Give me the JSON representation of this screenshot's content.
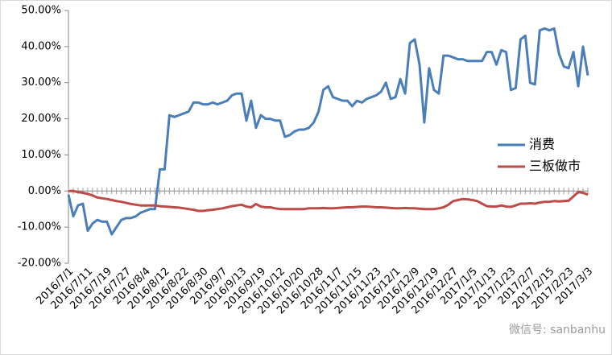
{
  "chart_data": {
    "type": "line",
    "categories": [
      "2016/7/1",
      null,
      null,
      null,
      "2016/7/11",
      null,
      null,
      null,
      "2016/7/19",
      null,
      null,
      null,
      "2016/7/27",
      null,
      null,
      null,
      "2016/8/4",
      null,
      null,
      null,
      "2016/8/12",
      null,
      null,
      null,
      "2016/8/22",
      null,
      null,
      null,
      "2016/8/30",
      null,
      null,
      null,
      "2016/9/7",
      null,
      null,
      null,
      "2016/9/13",
      null,
      null,
      null,
      "2016/9/19",
      null,
      null,
      null,
      "2016/10/12",
      null,
      null,
      null,
      "2016/10/20",
      null,
      null,
      null,
      "2016/10/28",
      null,
      null,
      null,
      "2016/11/7",
      null,
      null,
      null,
      "2016/11/15",
      null,
      null,
      null,
      "2016/11/23",
      null,
      null,
      null,
      "2016/12/1",
      null,
      null,
      null,
      "2016/12/9",
      null,
      null,
      null,
      "2016/12/19",
      null,
      null,
      null,
      "2016/12/27",
      null,
      null,
      null,
      "2017/1/5",
      null,
      null,
      null,
      "2017/1/13",
      null,
      null,
      null,
      "2017/1/23",
      null,
      null,
      null,
      "2017/2/7",
      null,
      null,
      null,
      "2017/2/15",
      null,
      null,
      null,
      "2017/2/23",
      null,
      null,
      null,
      "2017/3/3"
    ],
    "series": [
      {
        "name": "消费",
        "color": "#4a7ebb",
        "values": [
          -1,
          -7,
          -4,
          -3.5,
          -11,
          -9,
          -8,
          -8.5,
          -8.5,
          -12,
          -10,
          -8,
          -7.5,
          -7.5,
          -7,
          -6,
          -5.5,
          -5,
          -5,
          6,
          6,
          21,
          20.5,
          21,
          21.5,
          22,
          24.5,
          24.5,
          24,
          24,
          24.5,
          24,
          24.5,
          25,
          26.5,
          27,
          27,
          19.5,
          25,
          17.5,
          21,
          20,
          20,
          19.5,
          19.5,
          15,
          15.5,
          16.5,
          17,
          17,
          17.5,
          19,
          22,
          28,
          29,
          26,
          25.5,
          25,
          25,
          23.5,
          25,
          24.5,
          25.5,
          26,
          26.5,
          27.5,
          30,
          25.5,
          26,
          31,
          27,
          41,
          42,
          35,
          19,
          34,
          28,
          27,
          37.5,
          37.5,
          37,
          36.5,
          36.5,
          36,
          36,
          36,
          36,
          38.5,
          38.5,
          35,
          39,
          38.5,
          28,
          28.5,
          42,
          43,
          30,
          29.5,
          44.5,
          45,
          44.5,
          45,
          38,
          34.5,
          34,
          38.5,
          29,
          40,
          32
        ]
      },
      {
        "name": "三板做市",
        "color": "#be4b48",
        "values": [
          0,
          0,
          -0.3,
          -0.5,
          -0.8,
          -1.2,
          -1.8,
          -2,
          -2.2,
          -2.5,
          -2.8,
          -3,
          -3.3,
          -3.6,
          -3.8,
          -4,
          -4,
          -4,
          -4,
          -4.2,
          -4.3,
          -4.4,
          -4.5,
          -4.6,
          -4.8,
          -5,
          -5.2,
          -5.5,
          -5.5,
          -5.3,
          -5.2,
          -5,
          -4.8,
          -4.5,
          -4.2,
          -4,
          -3.8,
          -4.3,
          -4.5,
          -3.6,
          -4.3,
          -4.5,
          -4.5,
          -4.8,
          -5,
          -5,
          -5,
          -5,
          -5,
          -5,
          -4.8,
          -4.8,
          -4.8,
          -4.7,
          -4.8,
          -4.8,
          -4.7,
          -4.6,
          -4.5,
          -4.5,
          -4.4,
          -4.3,
          -4.3,
          -4.4,
          -4.5,
          -4.5,
          -4.6,
          -4.7,
          -4.8,
          -4.8,
          -4.7,
          -4.8,
          -4.8,
          -4.9,
          -5,
          -5,
          -5,
          -4.8,
          -4.5,
          -3.8,
          -2.8,
          -2.5,
          -2.2,
          -2.3,
          -2.5,
          -2.8,
          -3.5,
          -4.2,
          -4.3,
          -4.3,
          -4,
          -4.3,
          -4.4,
          -4,
          -3.5,
          -3.5,
          -3.4,
          -3.5,
          -3.2,
          -3,
          -3,
          -2.8,
          -2.9,
          -2.8,
          -2.7,
          -1.5,
          -0.3,
          -0.5,
          -1
        ]
      }
    ],
    "ylim": [
      -20,
      50
    ],
    "yticks": [
      {
        "value": -20,
        "label": "-20.00%"
      },
      {
        "value": -10,
        "label": "-10.00%"
      },
      {
        "value": 0,
        "label": "0.00%"
      },
      {
        "value": 10,
        "label": "10.00%"
      },
      {
        "value": 20,
        "label": "20.00%"
      },
      {
        "value": 30,
        "label": "30.00%"
      },
      {
        "value": 40,
        "label": "40.00%"
      },
      {
        "value": 50,
        "label": "50.00%"
      }
    ],
    "grid": false,
    "legend": "right",
    "watermark": "微信号: sanbanhu"
  }
}
